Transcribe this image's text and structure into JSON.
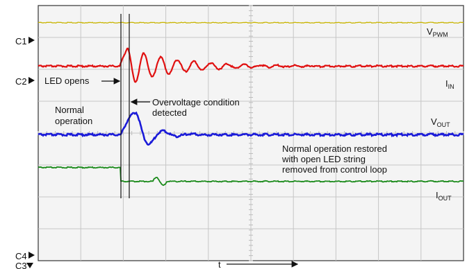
{
  "chart_data": {
    "type": "line",
    "title": "",
    "xlabel": "t",
    "ylabel": "",
    "grid": true,
    "grid_divisions": {
      "x": 10,
      "y": 8
    },
    "channel_markers": [
      "C1",
      "C2",
      "C4",
      "C3"
    ],
    "series": [
      {
        "name": "V",
        "subscript": "PWM",
        "channel": "C1",
        "color": "#c8b400",
        "behavior": "flat",
        "level": 0.0
      },
      {
        "name": "I",
        "subscript": "IN",
        "channel": "C1",
        "color": "#e01010",
        "behavior": "spike-then-damped-ring",
        "spike": 1.0,
        "ring_cycles": 8
      },
      {
        "name": "V",
        "subscript": "OUT",
        "channel": "C2",
        "color": "#1a1ad8",
        "behavior": "rise-then-damped-ring",
        "spike": 1.0,
        "ring_cycles": 4
      },
      {
        "name": "I",
        "subscript": "OUT",
        "channel": "C3",
        "color": "#1a8a1a",
        "behavior": "step-down",
        "step": -0.5
      }
    ],
    "events": [
      {
        "label": "LED opens",
        "x_div": 3.05
      },
      {
        "label": "Overvoltage condition detected",
        "x_div": 3.25
      }
    ],
    "annotations": [
      {
        "text": [
          "Normal",
          "operation"
        ]
      },
      {
        "text": [
          "Normal operation restored",
          "with open LED string",
          "removed from control loop"
        ]
      }
    ]
  },
  "labels": {
    "c1": "C1",
    "c2": "C2",
    "c4": "C4",
    "c3": "C3",
    "led_opens": "LED opens",
    "ov_line1": "Overvoltage condition",
    "ov_line2": "detected",
    "normal_line1": "Normal",
    "normal_line2": "operation",
    "restored_line1": "Normal operation restored",
    "restored_line2": "with open LED string",
    "restored_line3": "removed from control loop",
    "t_label": "t",
    "vpwm_main": "V",
    "vpwm_sub": "PWM",
    "iin_main": "I",
    "iin_sub": "IN",
    "vout_main": "V",
    "vout_sub": "OUT",
    "iout_main": "I",
    "iout_sub": "OUT"
  }
}
